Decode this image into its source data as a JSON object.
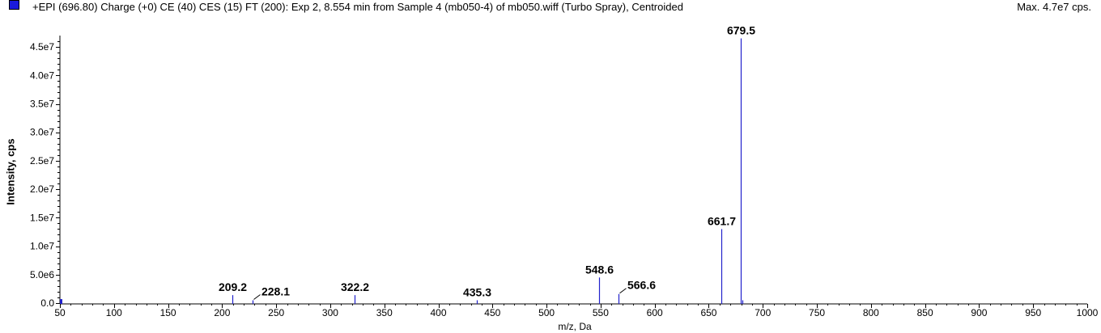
{
  "header": {
    "title": "+EPI (696.80) Charge (+0) CE (40) CES (15) FT (200): Exp 2, 8.554 min from Sample 4 (mb050-4) of mb050.wiff (Turbo Spray), Centroided",
    "max_label": "Max. 4.7e7 cps."
  },
  "chart_data": {
    "type": "bar",
    "xlabel": "m/z, Da",
    "ylabel": "Intensity, cps",
    "xlim": [
      50,
      1000
    ],
    "ylim": [
      0,
      47000000.0
    ],
    "x_ticks": [
      50,
      100,
      150,
      200,
      250,
      300,
      350,
      400,
      450,
      500,
      550,
      600,
      650,
      700,
      750,
      800,
      850,
      900,
      950,
      1000
    ],
    "y_ticks": [
      {
        "value": 0,
        "label": "0.0"
      },
      {
        "value": 5000000,
        "label": "5.0e6"
      },
      {
        "value": 10000000,
        "label": "1.0e7"
      },
      {
        "value": 15000000,
        "label": "1.5e7"
      },
      {
        "value": 20000000,
        "label": "2.0e7"
      },
      {
        "value": 25000000,
        "label": "2.5e7"
      },
      {
        "value": 30000000,
        "label": "3.0e7"
      },
      {
        "value": 35000000,
        "label": "3.5e7"
      },
      {
        "value": 40000000,
        "label": "4.0e7"
      },
      {
        "value": 45000000,
        "label": "4.5e7"
      }
    ],
    "peaks": [
      {
        "mz": 50.5,
        "intensity": 700000
      },
      {
        "mz": 209.2,
        "intensity": 1400000,
        "label": "209.2"
      },
      {
        "mz": 228.1,
        "intensity": 500000,
        "label": "228.1"
      },
      {
        "mz": 322.2,
        "intensity": 1400000,
        "label": "322.2"
      },
      {
        "mz": 435.3,
        "intensity": 500000,
        "label": "435.3"
      },
      {
        "mz": 548.6,
        "intensity": 4500000,
        "label": "548.6"
      },
      {
        "mz": 566.6,
        "intensity": 1600000,
        "label": "566.6"
      },
      {
        "mz": 661.7,
        "intensity": 13000000,
        "label": "661.7"
      },
      {
        "mz": 679.5,
        "intensity": 46500000,
        "label": "679.5"
      },
      {
        "mz": 681.0,
        "intensity": 500000
      }
    ],
    "colors": {
      "peak": "#2222cc",
      "axis": "#000000",
      "swatch": "#1a1adb"
    }
  }
}
